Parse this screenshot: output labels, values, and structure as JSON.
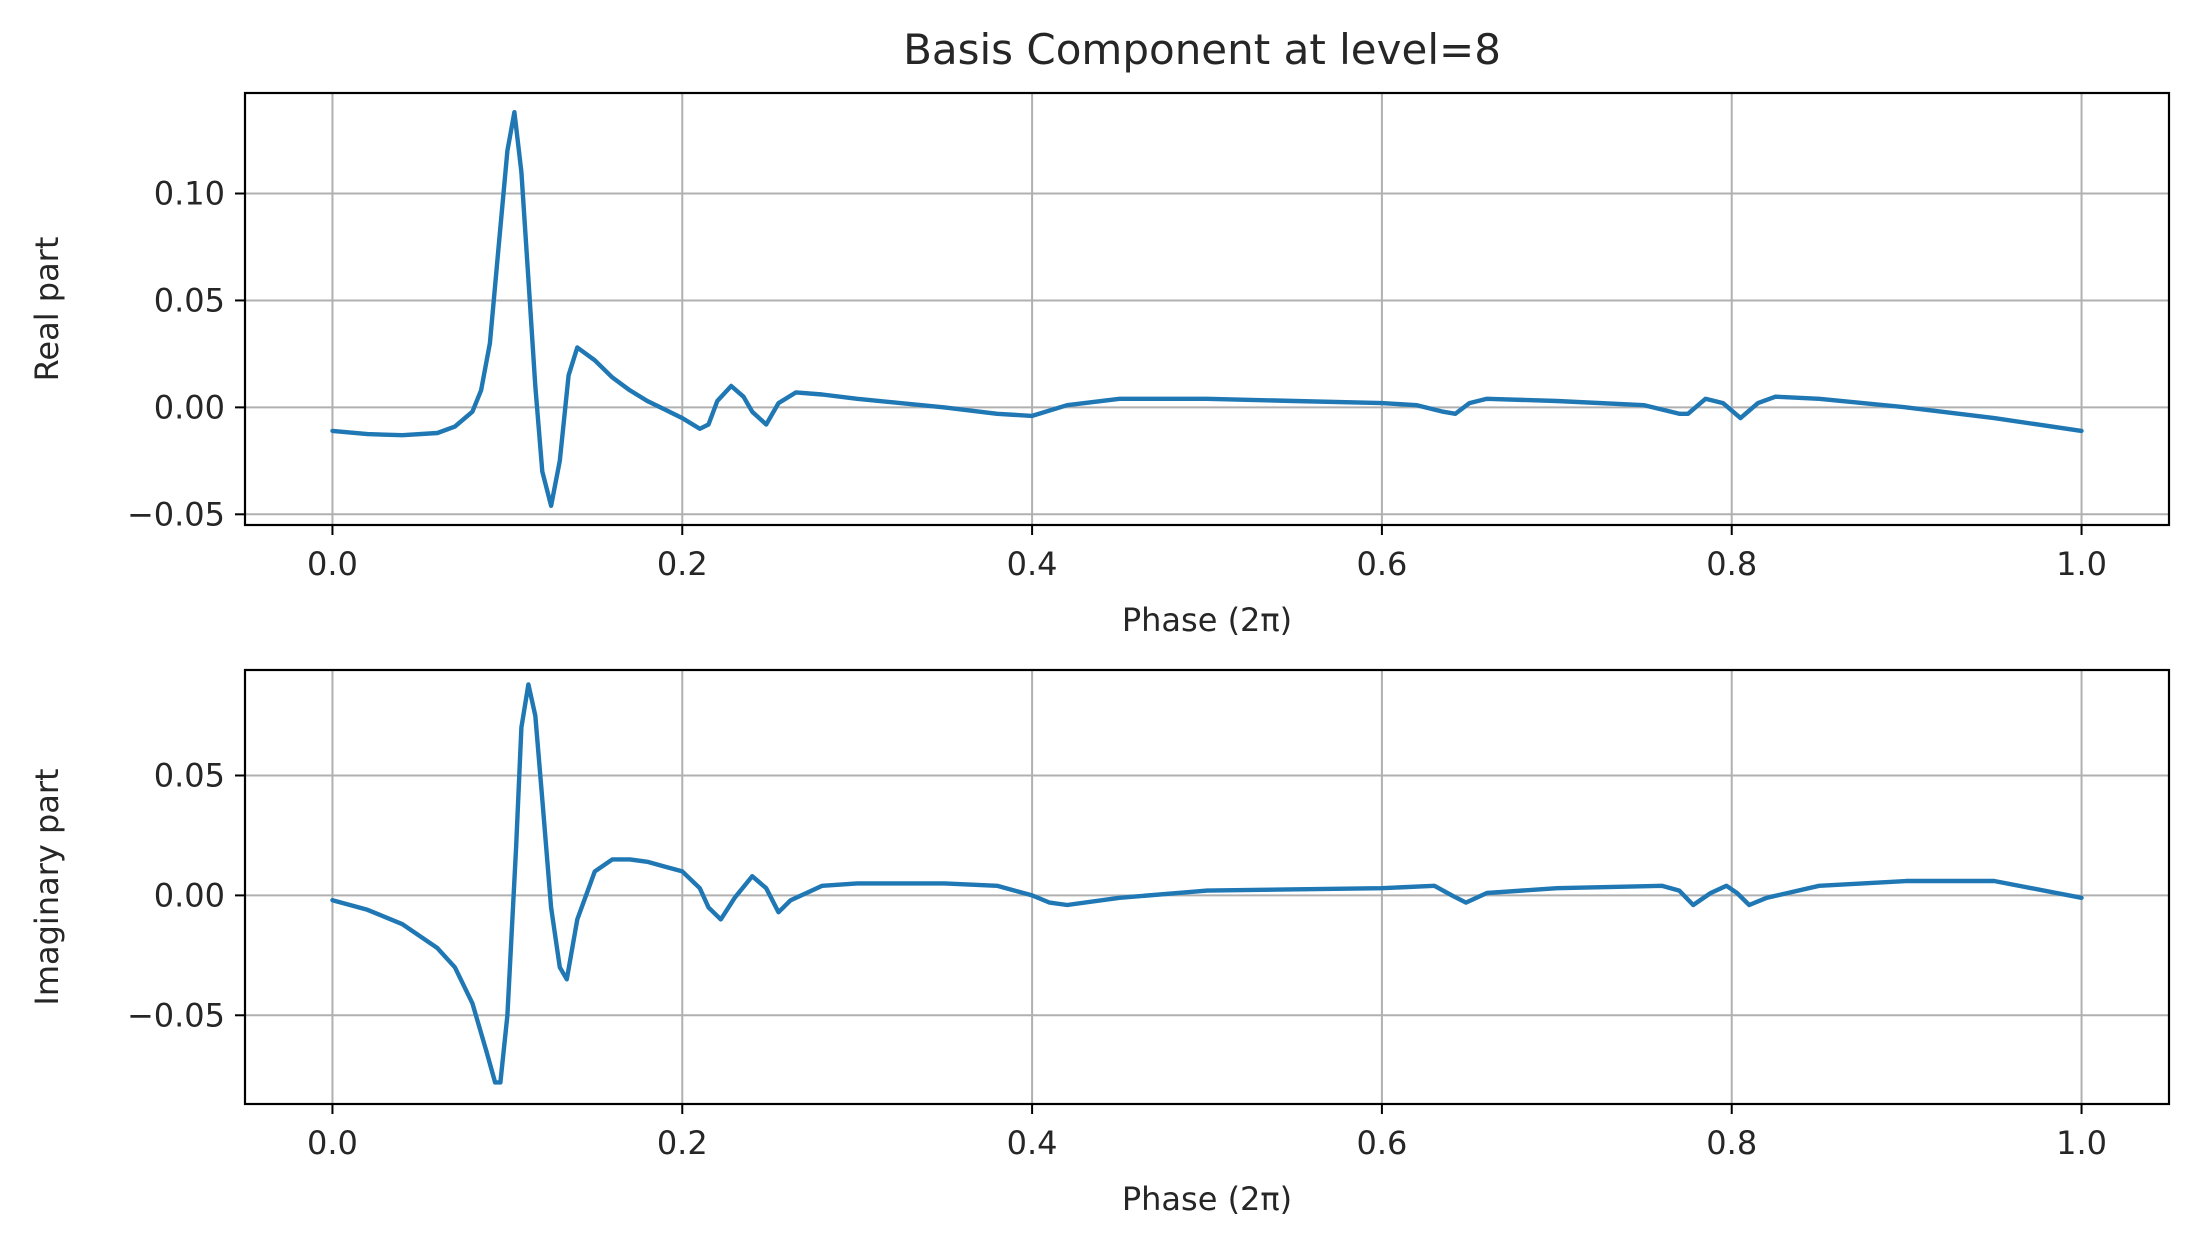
{
  "title": "Basis Component at level=8",
  "chart_data": [
    {
      "type": "line",
      "ylabel": "Real part",
      "xlabel": "Phase (2π)",
      "xlim": [
        -0.05,
        1.05
      ],
      "ylim": [
        -0.055,
        0.147
      ],
      "xticks": [
        0.0,
        0.2,
        0.4,
        0.6,
        0.8,
        1.0
      ],
      "xtick_labels": [
        "0.0",
        "0.2",
        "0.4",
        "0.6",
        "0.8",
        "1.0"
      ],
      "yticks": [
        -0.05,
        0.0,
        0.05,
        0.1
      ],
      "ytick_labels": [
        "−0.05",
        "0.00",
        "0.05",
        "0.10"
      ],
      "grid": true,
      "color": "#1f77b4",
      "series": [
        {
          "x": [
            0.0,
            0.02,
            0.04,
            0.06,
            0.07,
            0.08,
            0.085,
            0.09,
            0.095,
            0.1,
            0.104,
            0.108,
            0.112,
            0.116,
            0.12,
            0.125,
            0.13,
            0.135,
            0.14,
            0.15,
            0.16,
            0.17,
            0.18,
            0.19,
            0.2,
            0.21,
            0.215,
            0.22,
            0.228,
            0.235,
            0.24,
            0.248,
            0.255,
            0.265,
            0.28,
            0.3,
            0.35,
            0.38,
            0.4,
            0.42,
            0.45,
            0.5,
            0.55,
            0.6,
            0.62,
            0.635,
            0.642,
            0.65,
            0.66,
            0.7,
            0.75,
            0.77,
            0.775,
            0.785,
            0.795,
            0.805,
            0.815,
            0.825,
            0.85,
            0.9,
            0.95,
            1.0
          ],
          "y": [
            -0.011,
            -0.0125,
            -0.013,
            -0.012,
            -0.009,
            -0.002,
            0.008,
            0.03,
            0.075,
            0.12,
            0.138,
            0.11,
            0.06,
            0.01,
            -0.03,
            -0.046,
            -0.025,
            0.015,
            0.028,
            0.022,
            0.014,
            0.008,
            0.003,
            -0.001,
            -0.005,
            -0.01,
            -0.008,
            0.003,
            0.01,
            0.005,
            -0.002,
            -0.008,
            0.002,
            0.007,
            0.006,
            0.004,
            0.0,
            -0.003,
            -0.004,
            0.001,
            0.004,
            0.004,
            0.003,
            0.002,
            0.001,
            -0.002,
            -0.003,
            0.002,
            0.004,
            0.003,
            0.001,
            -0.003,
            -0.003,
            0.004,
            0.002,
            -0.005,
            0.002,
            0.005,
            0.004,
            0.0,
            -0.005,
            -0.011
          ]
        }
      ]
    },
    {
      "type": "line",
      "ylabel": "Imaginary part",
      "xlabel": "Phase (2π)",
      "xlim": [
        -0.05,
        1.05
      ],
      "ylim": [
        -0.087,
        0.094
      ],
      "xticks": [
        0.0,
        0.2,
        0.4,
        0.6,
        0.8,
        1.0
      ],
      "xtick_labels": [
        "0.0",
        "0.2",
        "0.4",
        "0.6",
        "0.8",
        "1.0"
      ],
      "yticks": [
        -0.05,
        0.0,
        0.05
      ],
      "ytick_labels": [
        "−0.05",
        "0.00",
        "0.05"
      ],
      "grid": true,
      "color": "#1f77b4",
      "series": [
        {
          "x": [
            0.0,
            0.02,
            0.04,
            0.06,
            0.07,
            0.08,
            0.088,
            0.093,
            0.096,
            0.1,
            0.105,
            0.108,
            0.112,
            0.116,
            0.12,
            0.125,
            0.13,
            0.134,
            0.14,
            0.15,
            0.16,
            0.17,
            0.18,
            0.19,
            0.2,
            0.21,
            0.215,
            0.222,
            0.23,
            0.24,
            0.248,
            0.255,
            0.262,
            0.28,
            0.3,
            0.35,
            0.38,
            0.4,
            0.41,
            0.42,
            0.45,
            0.5,
            0.6,
            0.63,
            0.64,
            0.648,
            0.66,
            0.7,
            0.76,
            0.77,
            0.778,
            0.788,
            0.797,
            0.803,
            0.81,
            0.82,
            0.85,
            0.9,
            0.95,
            1.0
          ],
          "y": [
            -0.002,
            -0.006,
            -0.012,
            -0.022,
            -0.03,
            -0.045,
            -0.065,
            -0.078,
            -0.078,
            -0.05,
            0.02,
            0.07,
            0.088,
            0.075,
            0.04,
            -0.005,
            -0.03,
            -0.035,
            -0.01,
            0.01,
            0.015,
            0.015,
            0.014,
            0.012,
            0.01,
            0.003,
            -0.005,
            -0.01,
            -0.001,
            0.008,
            0.003,
            -0.007,
            -0.002,
            0.004,
            0.005,
            0.005,
            0.004,
            0.0,
            -0.003,
            -0.004,
            -0.001,
            0.002,
            0.003,
            0.004,
            0.0,
            -0.003,
            0.001,
            0.003,
            0.004,
            0.002,
            -0.004,
            0.001,
            0.004,
            0.001,
            -0.004,
            -0.001,
            0.004,
            0.006,
            0.006,
            -0.001
          ]
        }
      ]
    }
  ]
}
